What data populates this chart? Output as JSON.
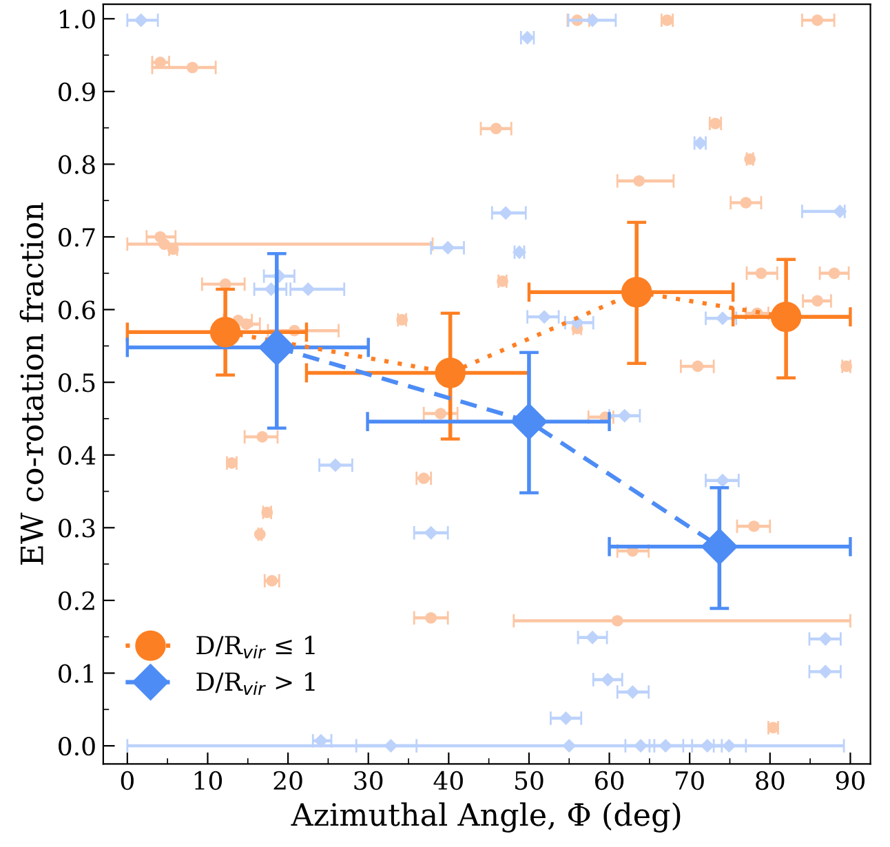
{
  "chart_data": {
    "type": "scatter",
    "xlabel": "Azimuthal Angle, Φ (deg)",
    "ylabel": "EW co-rotation fraction",
    "xlim": [
      -3,
      92.5
    ],
    "ylim": [
      -0.025,
      1.02
    ],
    "xticks": [
      0,
      {
        "value": 5,
        "label": null
      },
      10,
      {
        "value": 15,
        "label": null
      },
      20,
      {
        "value": 25,
        "label": null
      },
      30,
      {
        "value": 35,
        "label": null
      },
      40,
      {
        "value": 45,
        "label": null
      },
      50,
      {
        "value": 55,
        "label": null
      },
      60,
      {
        "value": 65,
        "label": null
      },
      70,
      {
        "value": 75,
        "label": null
      },
      80,
      {
        "value": 85,
        "label": null
      },
      90
    ],
    "yticks": [
      {
        "value": 0,
        "label": "0.0"
      },
      {
        "value": 0.05,
        "label": null
      },
      {
        "value": 0.1,
        "label": "0.1"
      },
      {
        "value": 0.15,
        "label": null
      },
      {
        "value": 0.2,
        "label": "0.2"
      },
      {
        "value": 0.25,
        "label": null
      },
      {
        "value": 0.3,
        "label": "0.3"
      },
      {
        "value": 0.35,
        "label": null
      },
      {
        "value": 0.4,
        "label": "0.4"
      },
      {
        "value": 0.45,
        "label": null
      },
      {
        "value": 0.5,
        "label": "0.5"
      },
      {
        "value": 0.55,
        "label": null
      },
      {
        "value": 0.6,
        "label": "0.6"
      },
      {
        "value": 0.65,
        "label": null
      },
      {
        "value": 0.7,
        "label": "0.7"
      },
      {
        "value": 0.75,
        "label": null
      },
      {
        "value": 0.8,
        "label": "0.8"
      },
      {
        "value": 0.85,
        "label": null
      },
      {
        "value": 0.9,
        "label": "0.9"
      },
      {
        "value": 0.95,
        "label": null
      },
      {
        "value": 1.0,
        "label": "1.0"
      }
    ],
    "grid": false,
    "legend": "bottom left",
    "series": [
      {
        "marker": "circle",
        "color": "#fcc6a4",
        "x": [
          4.1,
          8.1,
          4.1,
          4.6,
          5.7,
          12.2,
          13.8,
          14.8,
          20.8,
          16.8,
          13.0,
          17.4,
          16.5,
          18.0,
          56.0,
          45.9,
          46.7,
          34.2,
          56.0,
          63.7,
          67.2,
          85.9,
          73.2,
          77.5,
          77.0,
          78.9,
          88.0,
          85.9,
          78.4,
          71.0,
          89.5,
          39.0,
          59.5,
          36.9,
          37.8,
          61.0,
          78.0,
          62.9,
          80.4
        ],
        "values": [
          0.94,
          0.933,
          0.7,
          0.69,
          0.683,
          0.635,
          0.585,
          0.58,
          0.571,
          0.425,
          0.389,
          0.321,
          0.291,
          0.227,
          0.998,
          0.849,
          0.639,
          0.586,
          0.574,
          0.777,
          0.998,
          0.998,
          0.856,
          0.807,
          0.747,
          0.65,
          0.65,
          0.612,
          0.595,
          0.522,
          0.522,
          0.457,
          0.452,
          0.368,
          0.176,
          0.172,
          0.302,
          0.268,
          0.025
        ],
        "xerrors": [
          [
            3.1,
            5.2
          ],
          [
            3.1,
            11.0
          ],
          [
            2.4,
            6.0
          ],
          [
            0,
            38.0
          ],
          [
            5.2,
            6.2
          ],
          [
            9.3,
            14.6
          ],
          [
            12.0,
            15.5
          ],
          [
            13.5,
            16.5
          ],
          [
            17.5,
            26.3
          ],
          [
            14.6,
            18.7
          ],
          [
            12.4,
            13.6
          ],
          [
            16.9,
            17.9
          ],
          [
            16.3,
            16.7
          ],
          [
            17.1,
            18.9
          ],
          [
            54.8,
            57.5
          ],
          [
            44.0,
            47.8
          ],
          [
            46.2,
            47.2
          ],
          [
            33.7,
            34.7
          ],
          [
            55.5,
            56.5
          ],
          [
            61.0,
            68.0
          ],
          [
            66.5,
            67.9
          ],
          [
            84.0,
            88.0
          ],
          [
            72.5,
            73.9
          ],
          [
            77.1,
            77.9
          ],
          [
            75.1,
            78.9
          ],
          [
            77.1,
            80.9
          ],
          [
            86.2,
            89.8
          ],
          [
            84.1,
            87.6
          ],
          [
            77.0,
            79.8
          ],
          [
            68.9,
            73.0
          ],
          [
            89.0,
            90.0
          ],
          [
            36.9,
            41.1
          ],
          [
            57.4,
            60.5
          ],
          [
            36.0,
            37.8
          ],
          [
            35.7,
            39.9
          ],
          [
            48.1,
            90.0
          ],
          [
            75.9,
            80.0
          ],
          [
            61.0,
            64.9
          ],
          [
            79.8,
            81.0
          ]
        ]
      },
      {
        "marker": "diamond",
        "color": "#bcd2fb",
        "x": [
          1.7,
          18.9,
          17.9,
          22.5,
          57.9,
          49.8,
          47.1,
          39.9,
          48.8,
          51.9,
          56.0,
          71.3,
          88.7,
          74.1,
          25.9,
          24.1,
          32.8,
          37.8,
          57.9,
          59.8,
          54.6,
          55.0,
          62.9,
          61.9,
          74.1,
          86.9,
          86.9,
          63.9,
          67.0,
          72.2,
          74.9
        ],
        "values": [
          0.998,
          0.646,
          0.628,
          0.628,
          0.998,
          0.974,
          0.733,
          0.685,
          0.679,
          0.59,
          0.582,
          0.829,
          0.735,
          0.588,
          0.386,
          0.007,
          0.0,
          0.293,
          0.149,
          0.091,
          0.038,
          0.0,
          0.074,
          0.454,
          0.365,
          0.147,
          0.102,
          0.0,
          0.0,
          0.0,
          0.0
        ],
        "xerrors": [
          [
            0,
            3.8
          ],
          [
            17.0,
            20.8
          ],
          [
            15.8,
            19.8
          ],
          [
            20.3,
            27.0
          ],
          [
            54.9,
            60.8
          ],
          [
            49.0,
            50.6
          ],
          [
            45.4,
            49.6
          ],
          [
            37.8,
            41.9
          ],
          [
            48.2,
            49.4
          ],
          [
            49.8,
            53.7
          ],
          [
            54.5,
            58.0
          ],
          [
            70.6,
            72.0
          ],
          [
            84.0,
            89.3
          ],
          [
            72.0,
            75.8
          ],
          [
            23.9,
            28.0
          ],
          [
            23.1,
            25.4
          ],
          [
            28.5,
            36.0
          ],
          [
            35.7,
            39.9
          ],
          [
            56.1,
            59.7
          ],
          [
            58.0,
            61.6
          ],
          [
            52.7,
            56.5
          ],
          [
            0,
            89.2
          ],
          [
            61.0,
            64.9
          ],
          [
            60.0,
            63.8
          ],
          [
            72.0,
            76.1
          ],
          [
            84.9,
            88.8
          ],
          [
            84.9,
            88.8
          ],
          [
            62.0,
            65.6
          ],
          [
            65.0,
            69.2
          ],
          [
            70.3,
            74.0
          ],
          [
            73.0,
            77.0
          ]
        ]
      },
      {
        "type": "line",
        "name": "D/R$_{vir}$ ≤ 1",
        "marker": "circle",
        "line_style": "dotted",
        "color": "#fd7f23",
        "x": [
          12.2,
          40.2,
          63.4,
          82.0
        ],
        "values": [
          0.569,
          0.513,
          0.624,
          0.59
        ],
        "xerrors": [
          [
            0,
            22.3
          ],
          [
            22.3,
            50.0
          ],
          [
            50.0,
            75.4
          ],
          [
            75.4,
            90.0
          ]
        ],
        "errors": [
          [
            0.51,
            0.628
          ],
          [
            0.422,
            0.595
          ],
          [
            0.526,
            0.72
          ],
          [
            0.506,
            0.669
          ]
        ]
      },
      {
        "type": "line",
        "name": "D/R$_{vir}$ > 1",
        "marker": "diamond",
        "line_style": "dashed",
        "color": "#4d8cf5",
        "x": [
          18.6,
          50.0,
          73.7
        ],
        "values": [
          0.548,
          0.446,
          0.274
        ],
        "xerrors": [
          [
            0,
            30.0
          ],
          [
            29.9,
            60.0
          ],
          [
            60.0,
            90.0
          ]
        ],
        "errors": [
          [
            0.437,
            0.677
          ],
          [
            0.348,
            0.541
          ],
          [
            0.189,
            0.355
          ]
        ]
      }
    ]
  }
}
